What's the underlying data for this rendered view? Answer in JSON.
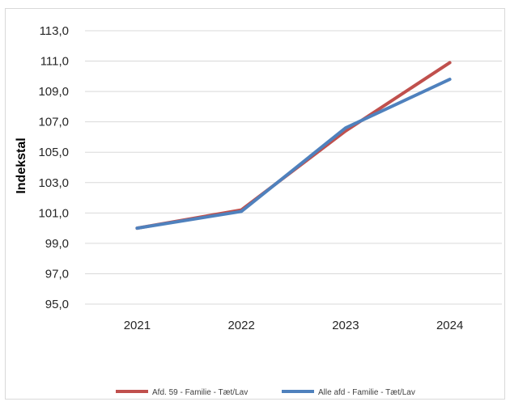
{
  "chart_data": {
    "type": "line",
    "title": "",
    "xlabel": "",
    "ylabel": "Indekstal",
    "categories": [
      "2021",
      "2022",
      "2023",
      "2024"
    ],
    "y_ticks": [
      "95,0",
      "97,0",
      "99,0",
      "101,0",
      "103,0",
      "105,0",
      "107,0",
      "109,0",
      "111,0",
      "113,0"
    ],
    "ylim": [
      95,
      113
    ],
    "grid": true,
    "legend_position": "bottom",
    "series": [
      {
        "name": "Afd. 59 - Familie - Tæt/Lav",
        "color": "#c0504d",
        "values": [
          100.0,
          101.2,
          106.4,
          110.9
        ]
      },
      {
        "name": "Alle afd - Familie - Tæt/Lav",
        "color": "#4f81bd",
        "values": [
          100.0,
          101.1,
          106.6,
          109.8
        ]
      }
    ]
  }
}
